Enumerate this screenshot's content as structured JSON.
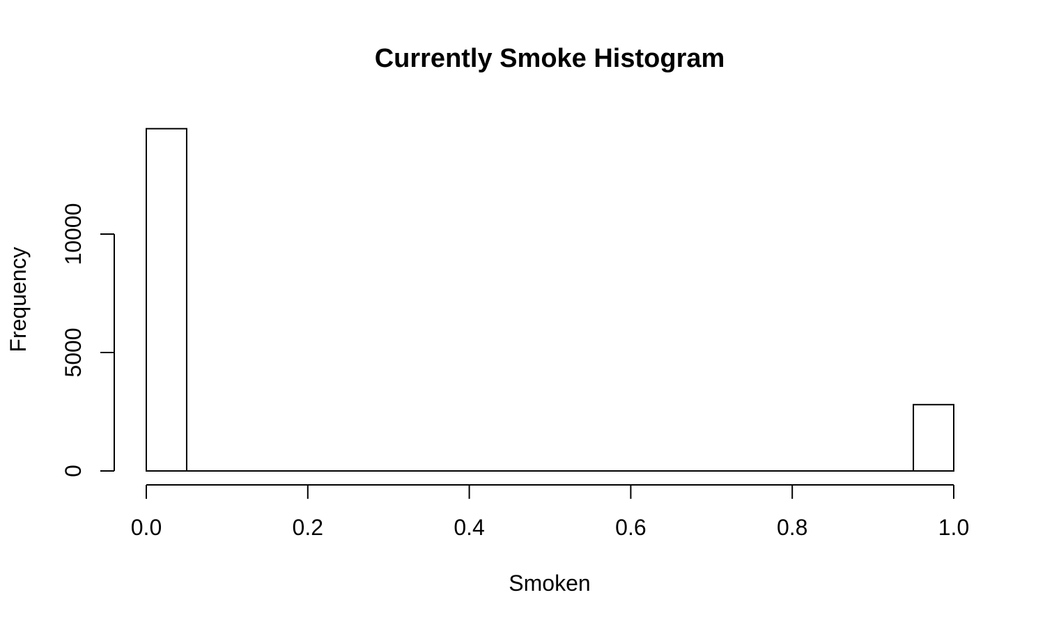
{
  "chart_data": {
    "type": "bar",
    "title": "Currently Smoke Histogram",
    "xlabel": "Smoken",
    "ylabel": "Frequency",
    "bin_edges": [
      0.0,
      0.05,
      0.1,
      0.15,
      0.2,
      0.25,
      0.3,
      0.35,
      0.4,
      0.45,
      0.5,
      0.55,
      0.6,
      0.65,
      0.7,
      0.75,
      0.8,
      0.85,
      0.9,
      0.95,
      1.0
    ],
    "values": [
      14450,
      0,
      0,
      0,
      0,
      0,
      0,
      0,
      0,
      0,
      0,
      0,
      0,
      0,
      0,
      0,
      0,
      0,
      0,
      2800
    ],
    "xlim": [
      0,
      1
    ],
    "ylim": [
      0,
      14450
    ],
    "x_ticks": [
      0.0,
      0.2,
      0.4,
      0.6,
      0.8,
      1.0
    ],
    "x_tick_labels": [
      "0.0",
      "0.2",
      "0.4",
      "0.6",
      "0.8",
      "1.0"
    ],
    "y_ticks": [
      0,
      5000,
      10000
    ],
    "y_tick_labels": [
      "0",
      "5000",
      "10000"
    ],
    "grid": false,
    "colors": {
      "bar_fill": "#ffffff",
      "bar_stroke": "#000000"
    }
  }
}
